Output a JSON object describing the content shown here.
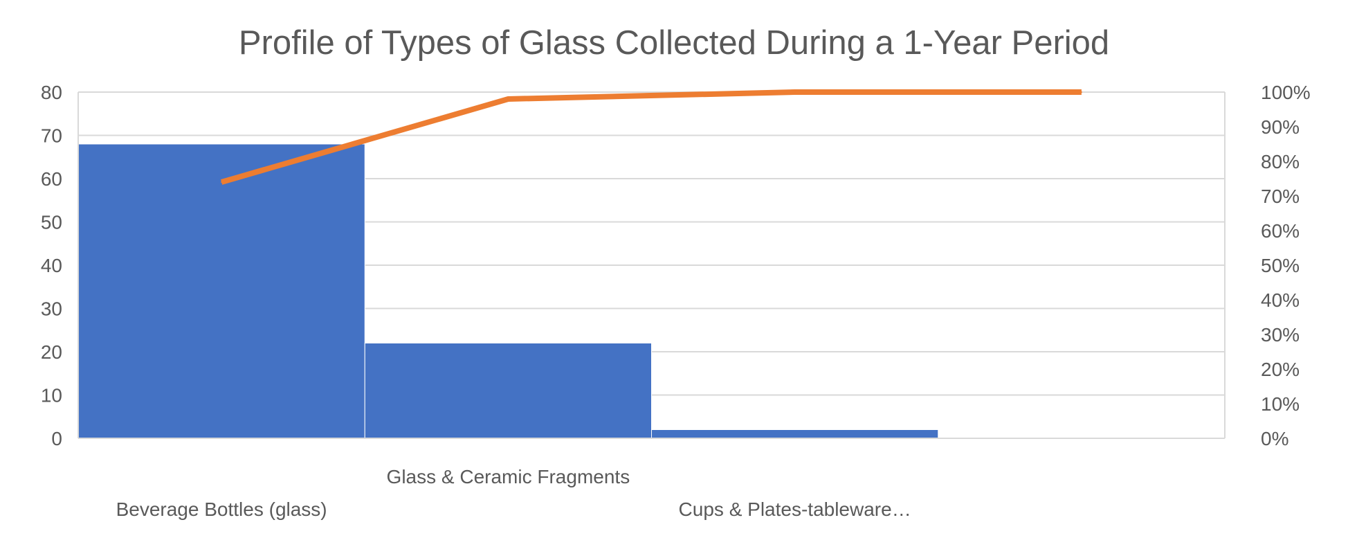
{
  "chart_data": {
    "type": "bar",
    "title": "Profile of Types of Glass Collected During a 1-Year Period",
    "xlabel": "",
    "ylabel": "",
    "categories": [
      "Beverage Bottles (glass)",
      "Glass & Ceramic Fragments",
      "Cups & Plates-tableware…",
      ""
    ],
    "series": [
      {
        "kind": "bar",
        "axis": "left",
        "values": [
          68,
          22,
          2,
          0
        ],
        "color": "#4472C4"
      },
      {
        "kind": "line",
        "axis": "right",
        "values": [
          0.74,
          0.98,
          1.0,
          1.0
        ],
        "color": "#ED7D31"
      }
    ],
    "ylim": [
      0,
      80
    ],
    "y_ticks": [
      "0",
      "10",
      "20",
      "30",
      "40",
      "50",
      "60",
      "70",
      "80"
    ],
    "y2lim": [
      0,
      1
    ],
    "y2_ticks": [
      "0%",
      "10%",
      "20%",
      "30%",
      "40%",
      "50%",
      "60%",
      "70%",
      "80%",
      "90%",
      "100%"
    ],
    "grid": true,
    "legend": "none",
    "label_rows": [
      1,
      0,
      1,
      0
    ]
  }
}
